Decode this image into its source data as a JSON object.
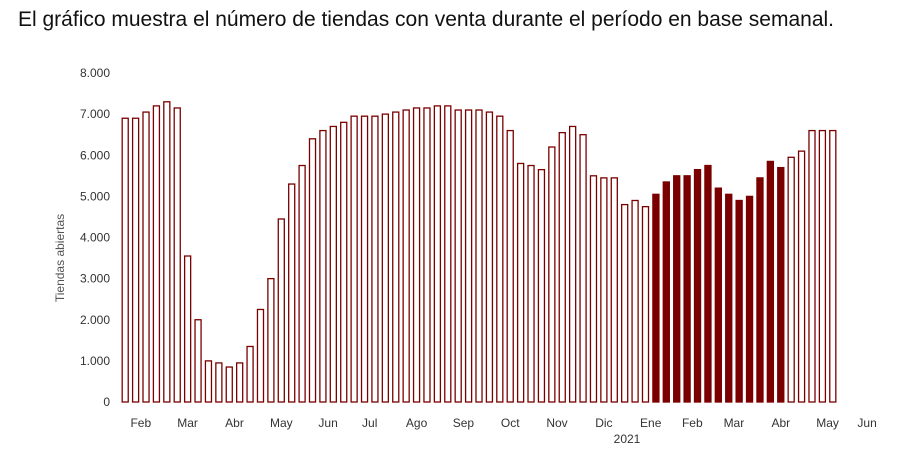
{
  "caption": "El gráfico muestra el número de tiendas con venta durante el período en base semanal.",
  "chart_data": {
    "type": "bar",
    "ylabel": "Tiendas abiertas",
    "ylim": [
      0,
      8000
    ],
    "yticks": [
      0,
      1000,
      2000,
      3000,
      4000,
      5000,
      6000,
      7000,
      8000
    ],
    "ytick_labels": [
      "0",
      "1.000",
      "2.000",
      "3.000",
      "4.000",
      "5.000",
      "6.000",
      "7.000",
      "8.000"
    ],
    "month_labels": [
      "Feb",
      "Mar",
      "Abr",
      "May",
      "Jun",
      "Jul",
      "Ago",
      "Sep",
      "Oct",
      "Nov",
      "Dic",
      "Ene",
      "Feb",
      "Mar",
      "Abr",
      "May",
      "Jun"
    ],
    "year_label": "2021",
    "grid": false,
    "colors": {
      "outline": "#7a0000",
      "fill_2021": "#7a0000",
      "fill_2020": "#ffffff"
    },
    "series": [
      {
        "period": "2020",
        "style": "outline",
        "values": [
          6900,
          6900,
          7050,
          7200,
          7300,
          7150,
          3550,
          2000,
          1000,
          950,
          850,
          950,
          1350,
          2250,
          3000,
          4450,
          5300,
          5750,
          6400,
          6600,
          6700,
          6800,
          6950,
          6950,
          6950,
          7000,
          7050,
          7100,
          7150,
          7150,
          7200,
          7200,
          7100,
          7100,
          7100,
          7050,
          6950,
          6600,
          5800,
          5750,
          5650,
          6200,
          6550,
          6700,
          6500,
          5500,
          5450,
          5450,
          4800,
          4900,
          4750
        ]
      },
      {
        "period": "2021",
        "style": "filled",
        "values": [
          5050,
          5350,
          5500,
          5500,
          5650,
          5750,
          5200,
          5050,
          4900,
          5000,
          5450,
          5850,
          5700
        ]
      },
      {
        "period": "2021",
        "style": "outline",
        "values": [
          5950,
          6100,
          6600,
          6600,
          6600
        ]
      }
    ]
  }
}
